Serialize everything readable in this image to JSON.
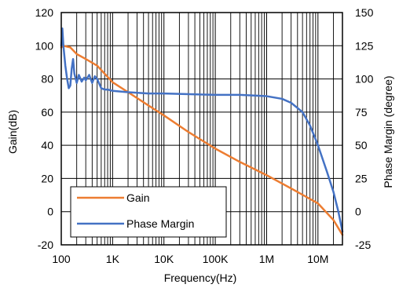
{
  "chart_data": {
    "type": "line",
    "xlabel": "Frequency(Hz)",
    "ylabel_left": "Gain(dB)",
    "ylabel_right": "Phase Margin (degree)",
    "x_scale": "log",
    "xlim": [
      100,
      30000000
    ],
    "ylim_left": [
      -20,
      120
    ],
    "ylim_right": [
      -25,
      150
    ],
    "x_ticks": [
      100,
      1000,
      10000,
      100000,
      1000000,
      10000000
    ],
    "x_tick_labels": [
      "100",
      "1K",
      "10K",
      "100K",
      "1M",
      "10M"
    ],
    "y_left_ticks": [
      -20,
      0,
      20,
      40,
      60,
      80,
      100,
      120
    ],
    "y_left_tick_labels": [
      "-20",
      "0",
      "20",
      "40",
      "60",
      "80",
      "100",
      "120"
    ],
    "y_right_ticks": [
      -25,
      0,
      25,
      50,
      75,
      100,
      125,
      150
    ],
    "y_right_tick_labels": [
      "-25",
      "0",
      "25",
      "50",
      "75",
      "100",
      "125",
      "150"
    ],
    "grid": true,
    "legend_position": "bottom-left",
    "series": [
      {
        "name": "Gain",
        "axis": "left",
        "color": "#ED7D31",
        "x": [
          100,
          110,
          150,
          200,
          300,
          500,
          1000,
          2000,
          5000,
          10000,
          30000,
          100000,
          300000,
          1000000,
          3000000,
          10000000,
          20000000,
          30000000
        ],
        "y": [
          99,
          100,
          99,
          95,
          92,
          88,
          78,
          72,
          64,
          58,
          48,
          38,
          30,
          22,
          14,
          5,
          -5,
          -14
        ]
      },
      {
        "name": "Phase Margin",
        "axis": "right",
        "color": "#4472C4",
        "x": [
          100,
          105,
          110,
          120,
          130,
          140,
          150,
          160,
          170,
          180,
          200,
          220,
          250,
          280,
          300,
          350,
          400,
          450,
          500,
          600,
          700,
          800,
          1000,
          2000,
          5000,
          10000,
          100000,
          300000,
          1000000,
          2000000,
          3000000,
          5000000,
          7000000,
          10000000,
          15000000,
          20000000,
          25000000,
          30000000
        ],
        "y": [
          125,
          138,
          125,
          110,
          100,
          93,
          95,
          108,
          115,
          104,
          97,
          103,
          98,
          101,
          99,
          103,
          97,
          102,
          100,
          93,
          92,
          92,
          91,
          90,
          89,
          89,
          88,
          88,
          87,
          85,
          82,
          75,
          65,
          50,
          30,
          15,
          0,
          -15
        ]
      }
    ]
  }
}
